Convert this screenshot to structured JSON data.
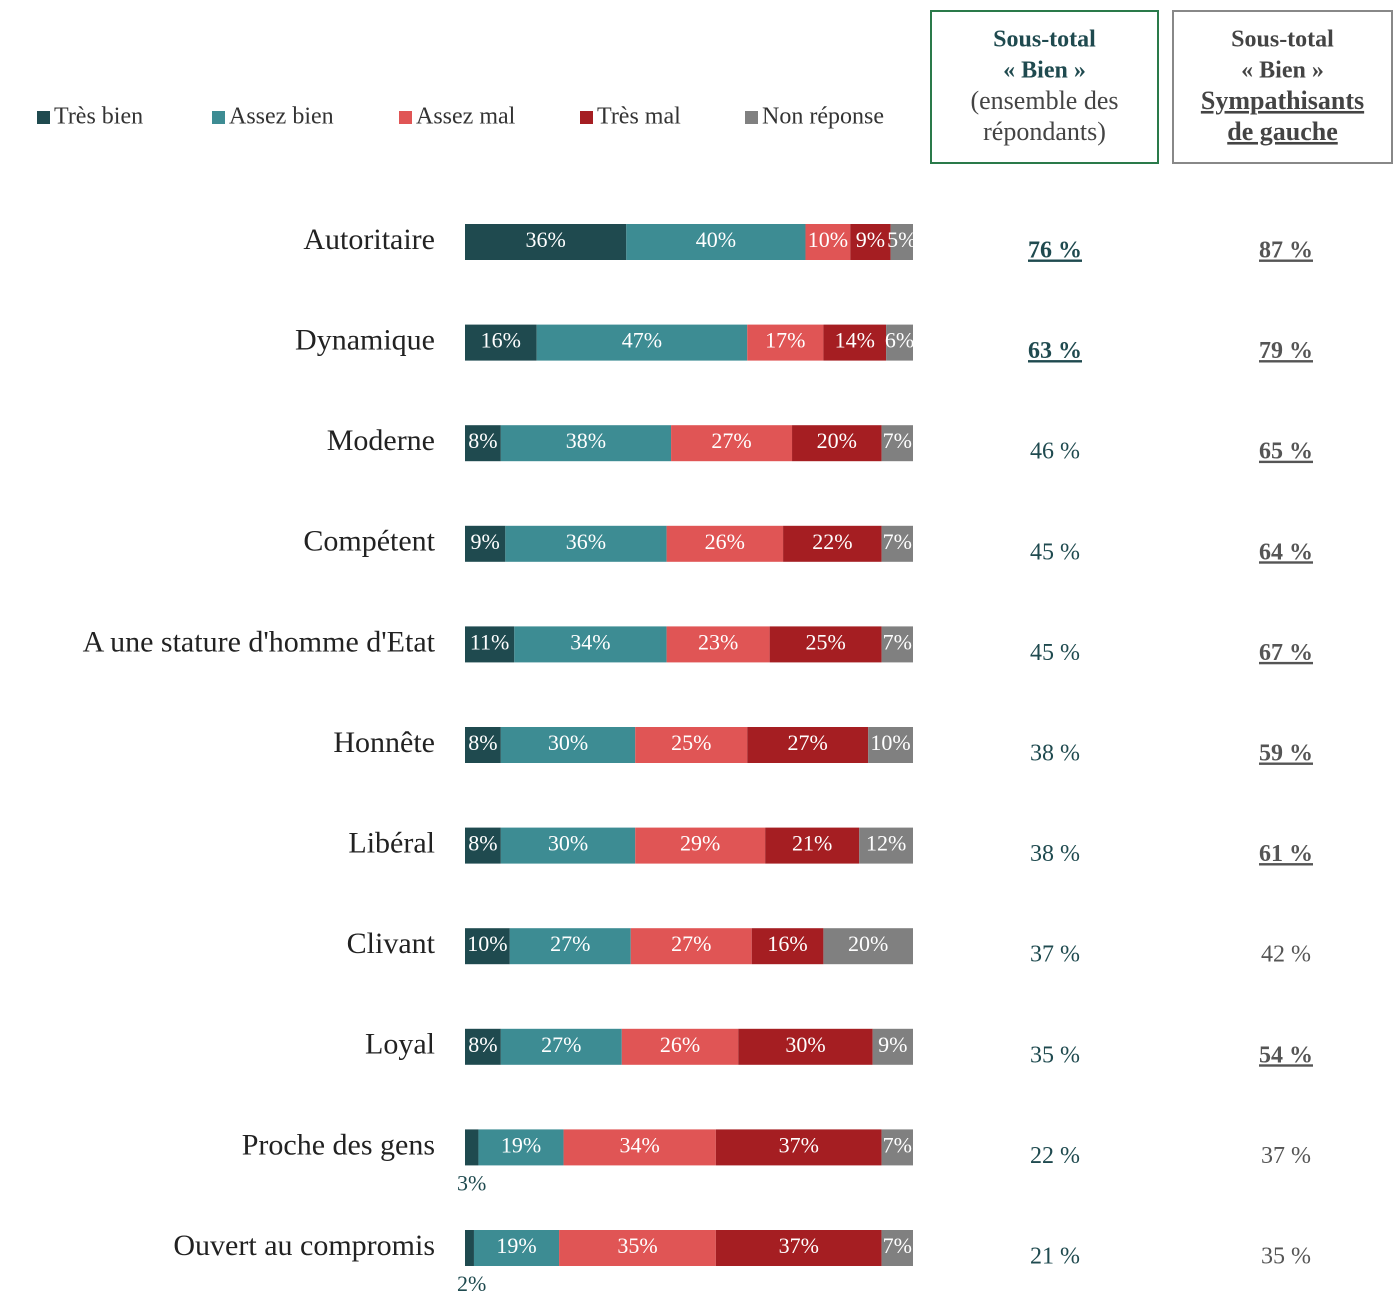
{
  "chart_data": {
    "type": "stacked_bar_horizontal",
    "categories": [
      "Autoritaire",
      "Dynamique",
      "Moderne",
      "Compétent",
      "A une stature d'homme d'Etat",
      "Honnête",
      "Libéral",
      "Clivant",
      "Loyal",
      "Proche des gens",
      "Ouvert au compromis"
    ],
    "xlim": [
      0,
      100
    ],
    "legend": "top",
    "series": [
      {
        "name": "Très bien",
        "color": "#1f4a4f",
        "values": [
          36,
          16,
          8,
          9,
          11,
          8,
          8,
          10,
          8,
          3,
          2
        ],
        "value_labels": [
          "36%",
          "16%",
          "8%",
          "9%",
          "11%",
          "8%",
          "8%",
          "10%",
          "8%",
          "3%",
          "2%"
        ]
      },
      {
        "name": "Assez bien",
        "color": "#3d8c93",
        "values": [
          40,
          47,
          38,
          36,
          34,
          30,
          30,
          27,
          27,
          19,
          19
        ],
        "value_labels": [
          "40%",
          "47%",
          "38%",
          "36%",
          "34%",
          "30%",
          "30%",
          "27%",
          "27%",
          "19%",
          "19%"
        ]
      },
      {
        "name": "Assez mal",
        "color": "#e05555",
        "values": [
          10,
          17,
          27,
          26,
          23,
          25,
          29,
          27,
          26,
          34,
          35
        ],
        "value_labels": [
          "10%",
          "17%",
          "27%",
          "26%",
          "23%",
          "25%",
          "29%",
          "27%",
          "26%",
          "34%",
          "35%"
        ]
      },
      {
        "name": "Très mal",
        "color": "#a51e22",
        "values": [
          9,
          14,
          20,
          22,
          25,
          27,
          21,
          16,
          30,
          37,
          37
        ],
        "value_labels": [
          "9%",
          "14%",
          "20%",
          "22%",
          "25%",
          "27%",
          "21%",
          "16%",
          "30%",
          "37%",
          "37%"
        ]
      },
      {
        "name": "Non réponse",
        "color": "#808080",
        "values": [
          5,
          6,
          7,
          7,
          7,
          10,
          12,
          20,
          9,
          7,
          7
        ],
        "value_labels": [
          "5%",
          "6%",
          "7%",
          "7%",
          "7%",
          "10%",
          "12%",
          "20%",
          "9%",
          "7%",
          "7%"
        ]
      }
    ],
    "columns": [
      {
        "header": [
          "Sous-total",
          "« Bien »",
          "(ensemble des",
          "répondants)"
        ],
        "border_color": "#2a7a4a",
        "color": "#1f4a4f",
        "values": [
          76,
          63,
          46,
          45,
          45,
          38,
          38,
          37,
          35,
          22,
          21
        ],
        "value_labels": [
          "76 %",
          "63 %",
          "46 %",
          "45 %",
          "45 %",
          "38 %",
          "38 %",
          "37 %",
          "35 %",
          "22 %",
          "21 %"
        ],
        "emphasis": [
          true,
          true,
          false,
          false,
          false,
          false,
          false,
          false,
          false,
          false,
          false
        ]
      },
      {
        "header": [
          "Sous-total",
          "« Bien »",
          "Sympathisants",
          "de gauche"
        ],
        "border_color": "#888888",
        "color": "#555555",
        "values": [
          87,
          79,
          65,
          64,
          67,
          59,
          61,
          42,
          54,
          37,
          35
        ],
        "value_labels": [
          "87 %",
          "79 %",
          "65 %",
          "64 %",
          "67 %",
          "59 %",
          "61 %",
          "42 %",
          "54 %",
          "37 %",
          "35 %"
        ],
        "emphasis": [
          true,
          true,
          true,
          true,
          true,
          true,
          true,
          false,
          true,
          false,
          false
        ]
      }
    ]
  }
}
